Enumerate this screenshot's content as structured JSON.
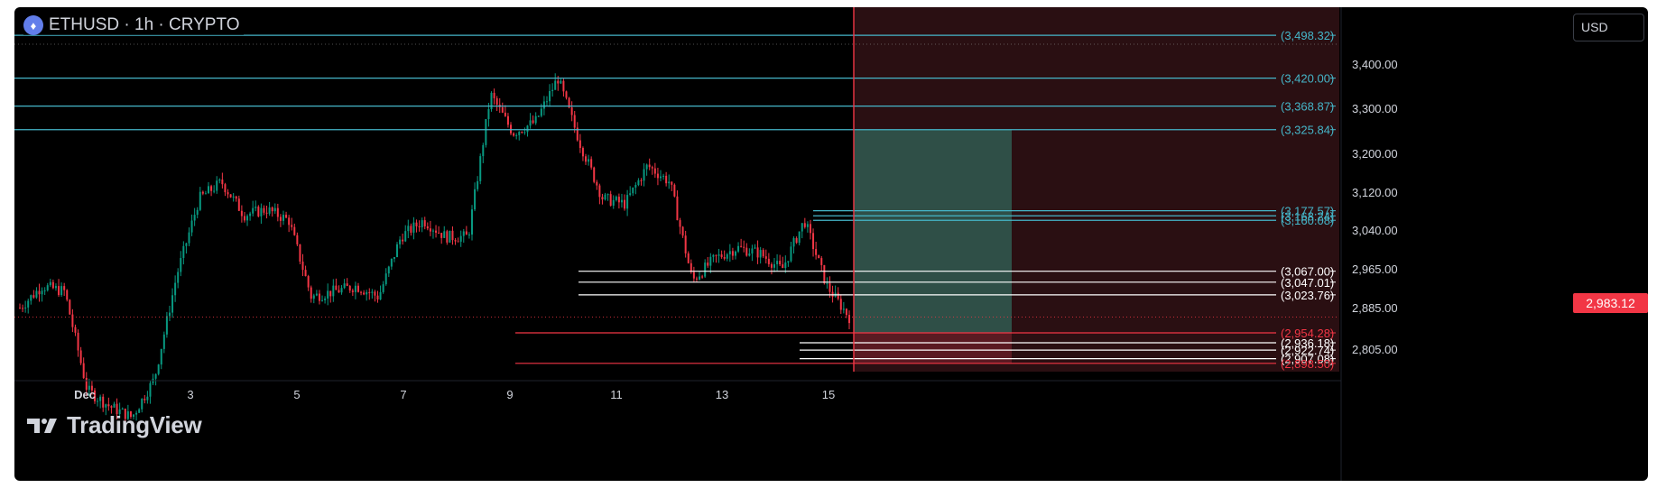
{
  "header": {
    "symbol_text": "ETHUSD · 1h · CRYPTO",
    "icon": "ethereum-icon"
  },
  "toolbar": {
    "currency_label": "USD"
  },
  "branding": {
    "logo_text": "TradingView"
  },
  "colors": {
    "background": "#000000",
    "bull": "#089981",
    "bear": "#f23645",
    "cyan_line": "#45b6c9",
    "white_line": "#ffffff",
    "red_line": "#f23645",
    "axis_text": "#d1d4dc"
  },
  "chart_data": {
    "type": "candlestick",
    "symbol": "ETHUSD",
    "interval": "1h",
    "price_axis": {
      "ticks": [
        "3,400.00",
        "3,300.00",
        "3,200.00",
        "3,120.00",
        "3,040.00",
        "2,965.00",
        "2,885.00",
        "2,805.00"
      ],
      "last_price": "2,983.12",
      "range": [
        2730,
        3520
      ]
    },
    "time_axis": {
      "ticks": [
        "Dec",
        "3",
        "5",
        "7",
        "9",
        "11",
        "13",
        "15"
      ]
    },
    "approx_close_path": [
      3000,
      3040,
      3030,
      2850,
      2820,
      2800,
      2870,
      3060,
      3200,
      3230,
      3170,
      3180,
      3160,
      3020,
      3030,
      3040,
      3020,
      3130,
      3160,
      3130,
      3130,
      3390,
      3320,
      3340,
      3420,
      3300,
      3200,
      3190,
      3260,
      3230,
      3050,
      3090,
      3110,
      3100,
      3070,
      3160,
      3040,
      2983
    ],
    "horizontal_levels": [
      {
        "label": "(3,498.32)",
        "price": 3498.32,
        "color": "cyan"
      },
      {
        "label": "(3,420.00)",
        "price": 3420.0,
        "color": "cyan"
      },
      {
        "label": "(3,368.87)",
        "price": 3368.87,
        "color": "cyan"
      },
      {
        "label": "(3,325.84)",
        "price": 3325.84,
        "color": "cyan"
      },
      {
        "label": "(3,177.57)",
        "price": 3177.57,
        "color": "cyan"
      },
      {
        "label": "(3,168.24)",
        "price": 3168.24,
        "color": "cyan"
      },
      {
        "label": "(3,160.08)",
        "price": 3160.08,
        "color": "cyan"
      },
      {
        "label": "(3,067.00)",
        "price": 3067.0,
        "color": "white"
      },
      {
        "label": "(3,047.01)",
        "price": 3047.01,
        "color": "white"
      },
      {
        "label": "(3,023.76)",
        "price": 3023.76,
        "color": "white"
      },
      {
        "label": "(2,954.28)",
        "price": 2954.28,
        "color": "red"
      },
      {
        "label": "(2,936.18)",
        "price": 2936.18,
        "color": "white"
      },
      {
        "label": "(2,922.74)",
        "price": 2922.74,
        "color": "white"
      },
      {
        "label": "(2,907.08)",
        "price": 2907.08,
        "color": "white"
      },
      {
        "label": "(2,898.50)",
        "price": 2898.5,
        "color": "red"
      }
    ],
    "position_tool": {
      "entry": 2954.28,
      "target": 3325.84,
      "stop": 2898.5
    }
  }
}
